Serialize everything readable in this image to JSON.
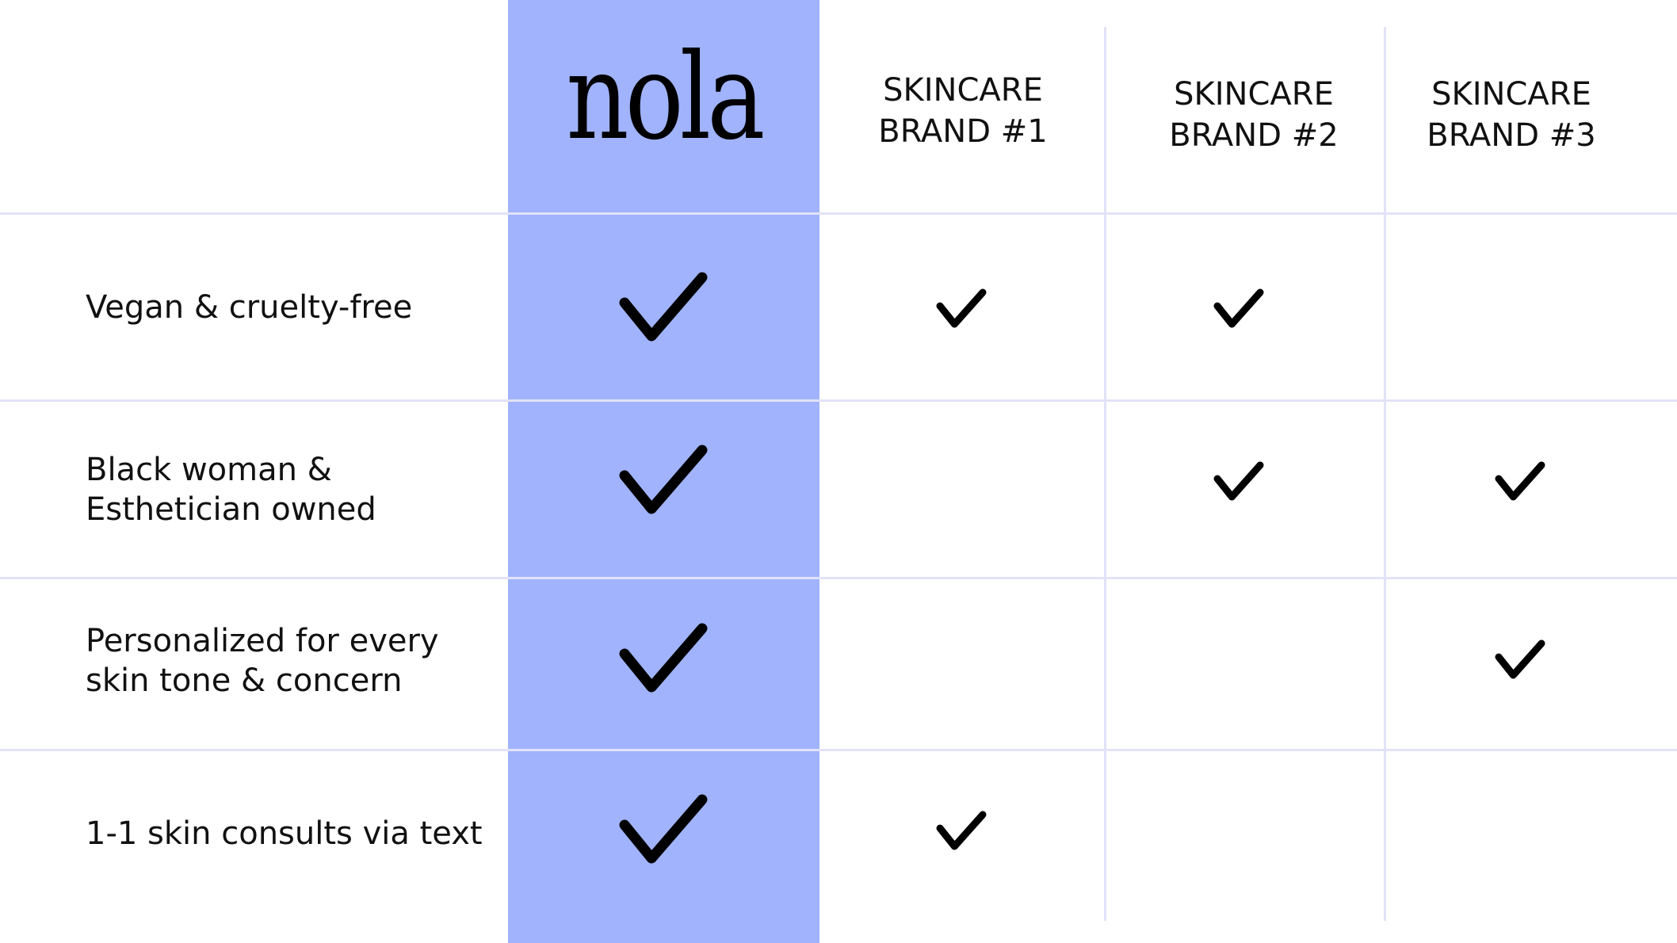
{
  "colors": {
    "highlight": "#a0b3fc",
    "grid": "#e2e2f8",
    "check": "#000000"
  },
  "logo": "nola",
  "columns": [
    "SKINCARE BRAND #1",
    "SKINCARE BRAND #2",
    "SKINCARE BRAND #3"
  ],
  "columns_lines": [
    [
      "SKINCARE",
      "BRAND #1"
    ],
    [
      "SKINCARE",
      "BRAND #2"
    ],
    [
      "SKINCARE",
      "BRAND #3"
    ]
  ],
  "rows": [
    {
      "feature": [
        "Vegan & cruelty-free"
      ],
      "nola": true,
      "brands": [
        true,
        true,
        false
      ]
    },
    {
      "feature": [
        "Black woman &",
        "Esthetician owned"
      ],
      "nola": true,
      "brands": [
        false,
        true,
        true
      ]
    },
    {
      "feature": [
        "Personalized for every",
        "skin tone & concern"
      ],
      "nola": true,
      "brands": [
        false,
        false,
        true
      ]
    },
    {
      "feature": [
        "1-1 skin consults via text"
      ],
      "nola": true,
      "brands": [
        true,
        false,
        false
      ]
    }
  ],
  "icon": "checkmark-icon"
}
